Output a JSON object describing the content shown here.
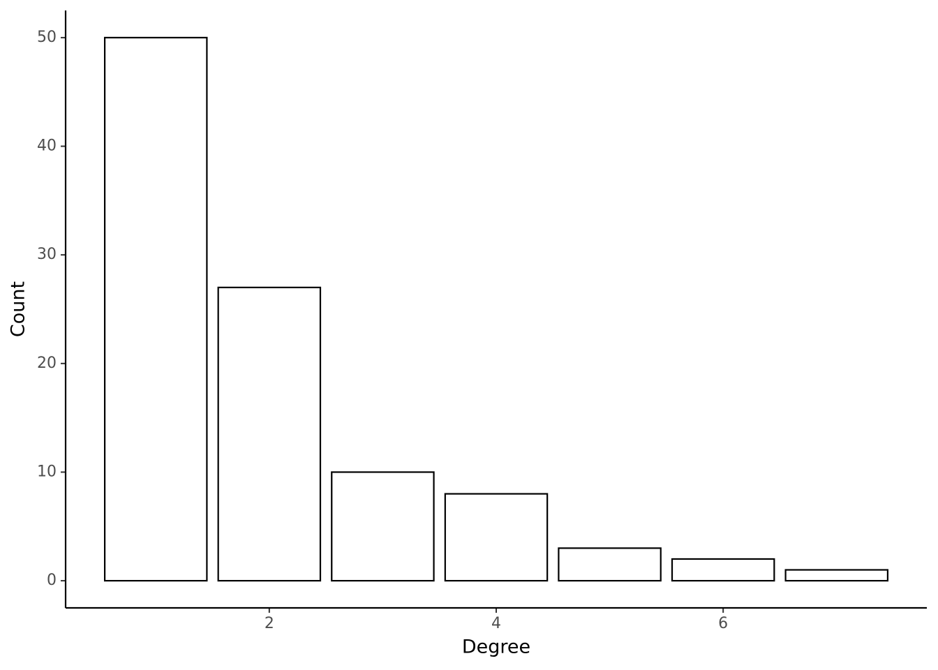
{
  "chart_data": {
    "type": "bar",
    "x_label": "Degree",
    "y_label": "Count",
    "x": [
      1,
      2,
      3,
      4,
      5,
      6,
      7
    ],
    "values": [
      50,
      27,
      10,
      8,
      3,
      2,
      1
    ],
    "color": "#ffffff",
    "edge_color": "#000000",
    "xlim": [
      0.205,
      7.795
    ],
    "xticks": [
      2,
      4,
      6
    ],
    "ylim": [
      -2.5,
      52.5
    ],
    "yticks": [
      0,
      10,
      20,
      30,
      40,
      50
    ],
    "grid": false
  }
}
